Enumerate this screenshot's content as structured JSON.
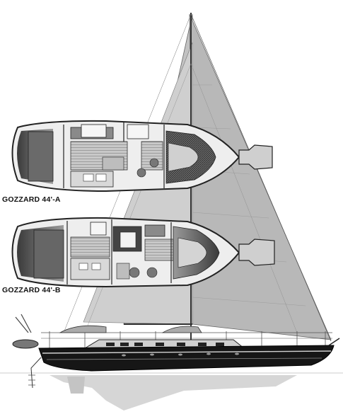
{
  "labels": {
    "plan_a": "GOZZARD 44'-A",
    "plan_b": "GOZZARD 44'-B"
  },
  "colors": {
    "sail": "#bdbdbd",
    "sail_dark": "#9a9a9a",
    "hull": "#151515",
    "deck_plan_fill": "#f2f2f2",
    "cabin_shade": "#555555",
    "sole_wood": "#b3b3b3",
    "outline": "#222222",
    "reflection": "#d4d4d4"
  }
}
